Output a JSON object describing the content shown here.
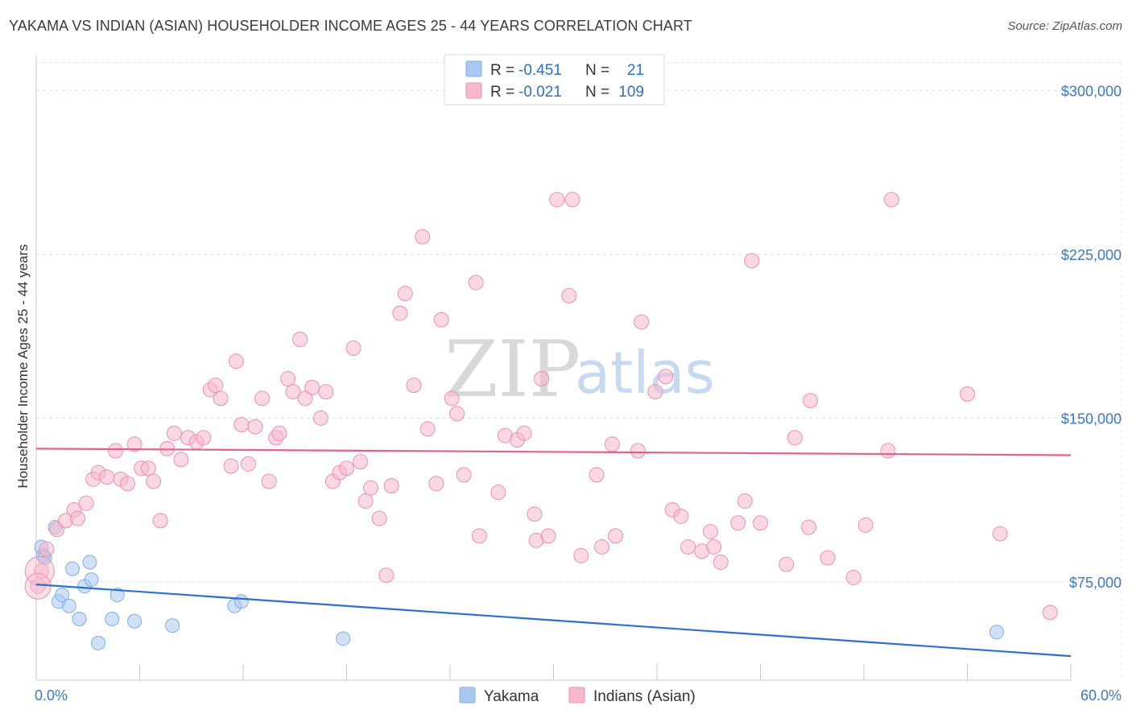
{
  "header": {
    "title": "YAKAMA VS INDIAN (ASIAN) HOUSEHOLDER INCOME AGES 25 - 44 YEARS CORRELATION CHART",
    "source": "Source: ZipAtlas.com"
  },
  "legend": {
    "rows": [
      {
        "r_label": "R =",
        "r_value": "-0.451",
        "n_label": "N =",
        "n_value": "21",
        "color": "#a9c8ef"
      },
      {
        "r_label": "R =",
        "r_value": "-0.021",
        "n_label": "N =",
        "n_value": "109",
        "color": "#f6b8cc"
      }
    ]
  },
  "watermark": {
    "zip": "ZIP",
    "atlas": "atlas"
  },
  "chart_data": {
    "type": "scatter",
    "ylabel": "Householder Income Ages 25 - 44 years",
    "xlim": [
      0,
      60
    ],
    "ylim": [
      30000,
      320000
    ],
    "x_tick_labels": [
      {
        "value": 0,
        "label": "0.0%"
      },
      {
        "value": 60,
        "label": "60.0%"
      }
    ],
    "y_ticks": [
      {
        "value": 75000,
        "label": "$75,000"
      },
      {
        "value": 150000,
        "label": "$150,000"
      },
      {
        "value": 225000,
        "label": "$225,000"
      },
      {
        "value": 300000,
        "label": "$300,000"
      }
    ],
    "grid": true,
    "series": [
      {
        "name": "Yakama",
        "color": "#a9c8ef",
        "stroke": "#7eaee6",
        "line_color": "#2c6fcf",
        "trend": {
          "x": [
            0,
            60
          ],
          "y": [
            73800,
            41000
          ]
        },
        "points": [
          [
            0.3,
            91000
          ],
          [
            0.4,
            87000
          ],
          [
            0.5,
            86000
          ],
          [
            1.1,
            100000
          ],
          [
            1.3,
            66000
          ],
          [
            1.5,
            69000
          ],
          [
            1.9,
            64000
          ],
          [
            2.1,
            81000
          ],
          [
            2.5,
            58000
          ],
          [
            2.8,
            73000
          ],
          [
            3.1,
            84000
          ],
          [
            3.2,
            76000
          ],
          [
            3.6,
            47000
          ],
          [
            4.4,
            58000
          ],
          [
            4.7,
            69000
          ],
          [
            5.7,
            57000
          ],
          [
            7.9,
            55000
          ],
          [
            11.5,
            64000
          ],
          [
            11.9,
            66000
          ],
          [
            17.8,
            49000
          ],
          [
            55.7,
            52000
          ]
        ]
      },
      {
        "name": "Indians (Asian)",
        "color": "#f6b8cc",
        "stroke": "#ee8fae",
        "line_color": "#e2628c",
        "trend": {
          "x": [
            0,
            60
          ],
          "y": [
            136000,
            133000
          ]
        },
        "points": [
          [
            0.1,
            73000
          ],
          [
            0.3,
            80000
          ],
          [
            0.6,
            90000
          ],
          [
            1.2,
            99000
          ],
          [
            1.7,
            103000
          ],
          [
            2.2,
            108000
          ],
          [
            2.4,
            104000
          ],
          [
            2.9,
            111000
          ],
          [
            3.3,
            122000
          ],
          [
            3.6,
            125000
          ],
          [
            4.1,
            123000
          ],
          [
            4.6,
            135000
          ],
          [
            4.9,
            122000
          ],
          [
            5.3,
            120000
          ],
          [
            5.7,
            138000
          ],
          [
            6.1,
            127000
          ],
          [
            6.5,
            127000
          ],
          [
            6.8,
            121000
          ],
          [
            7.2,
            103000
          ],
          [
            7.6,
            136000
          ],
          [
            8.0,
            143000
          ],
          [
            8.4,
            131000
          ],
          [
            8.8,
            141000
          ],
          [
            9.3,
            139000
          ],
          [
            9.7,
            141000
          ],
          [
            10.1,
            163000
          ],
          [
            10.4,
            165000
          ],
          [
            10.7,
            159000
          ],
          [
            11.3,
            128000
          ],
          [
            11.6,
            176000
          ],
          [
            11.9,
            147000
          ],
          [
            12.3,
            129000
          ],
          [
            12.7,
            146000
          ],
          [
            13.1,
            159000
          ],
          [
            13.5,
            121000
          ],
          [
            13.9,
            141000
          ],
          [
            14.1,
            143000
          ],
          [
            14.6,
            168000
          ],
          [
            14.9,
            162000
          ],
          [
            15.3,
            186000
          ],
          [
            15.6,
            159000
          ],
          [
            16.0,
            164000
          ],
          [
            16.5,
            150000
          ],
          [
            16.8,
            162000
          ],
          [
            17.2,
            121000
          ],
          [
            17.6,
            125000
          ],
          [
            18.0,
            127000
          ],
          [
            18.4,
            182000
          ],
          [
            18.8,
            130000
          ],
          [
            19.1,
            112000
          ],
          [
            19.4,
            118000
          ],
          [
            19.9,
            104000
          ],
          [
            20.3,
            78000
          ],
          [
            20.6,
            119000
          ],
          [
            21.1,
            198000
          ],
          [
            21.4,
            207000
          ],
          [
            21.9,
            165000
          ],
          [
            22.4,
            233000
          ],
          [
            22.7,
            145000
          ],
          [
            23.2,
            120000
          ],
          [
            23.5,
            195000
          ],
          [
            24.1,
            159000
          ],
          [
            24.4,
            152000
          ],
          [
            24.8,
            124000
          ],
          [
            25.5,
            212000
          ],
          [
            25.7,
            96000
          ],
          [
            26.8,
            116000
          ],
          [
            27.2,
            142000
          ],
          [
            27.9,
            140000
          ],
          [
            28.3,
            143000
          ],
          [
            28.9,
            106000
          ],
          [
            29.0,
            94000
          ],
          [
            29.3,
            168000
          ],
          [
            29.7,
            96000
          ],
          [
            30.2,
            250000
          ],
          [
            31.1,
            250000
          ],
          [
            30.9,
            206000
          ],
          [
            31.6,
            87000
          ],
          [
            32.5,
            124000
          ],
          [
            32.8,
            91000
          ],
          [
            33.4,
            138000
          ],
          [
            33.6,
            96000
          ],
          [
            34.9,
            135000
          ],
          [
            35.1,
            194000
          ],
          [
            35.9,
            162000
          ],
          [
            36.5,
            169000
          ],
          [
            36.9,
            108000
          ],
          [
            37.4,
            105000
          ],
          [
            37.8,
            91000
          ],
          [
            38.6,
            89000
          ],
          [
            39.1,
            98000
          ],
          [
            39.3,
            91000
          ],
          [
            39.7,
            84000
          ],
          [
            40.7,
            102000
          ],
          [
            41.1,
            112000
          ],
          [
            41.5,
            222000
          ],
          [
            42.0,
            102000
          ],
          [
            43.5,
            83000
          ],
          [
            44.0,
            141000
          ],
          [
            44.8,
            100000
          ],
          [
            44.9,
            158000
          ],
          [
            45.9,
            86000
          ],
          [
            47.4,
            77000
          ],
          [
            48.1,
            101000
          ],
          [
            49.4,
            135000
          ],
          [
            49.6,
            250000
          ],
          [
            54.0,
            161000
          ],
          [
            55.9,
            97000
          ],
          [
            58.8,
            61000
          ]
        ]
      }
    ]
  }
}
